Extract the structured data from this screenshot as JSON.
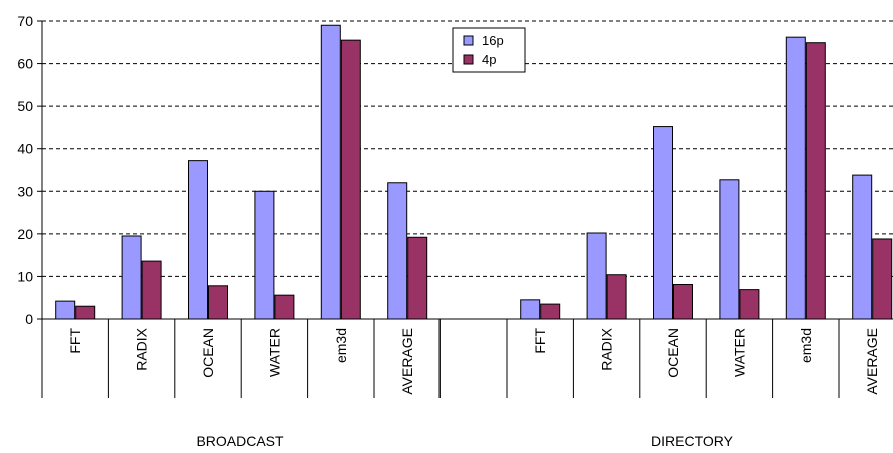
{
  "chart_data": {
    "type": "bar",
    "groups": [
      "BROADCAST",
      "DIRECTORY"
    ],
    "categories": [
      "FFT",
      "RADIX",
      "OCEAN",
      "WATER",
      "em3d",
      "AVERAGE"
    ],
    "series": [
      {
        "name": "16p",
        "color": "#9999ff",
        "values": [
          [
            4.2,
            19.5,
            37.2,
            30.0,
            69.0,
            32.0
          ],
          [
            4.5,
            20.2,
            45.2,
            32.7,
            66.2,
            33.8
          ]
        ]
      },
      {
        "name": "4p",
        "color": "#993366",
        "values": [
          [
            3.0,
            13.6,
            7.8,
            5.6,
            65.5,
            19.2
          ],
          [
            3.5,
            10.4,
            8.1,
            6.9,
            64.9,
            18.8
          ]
        ]
      }
    ],
    "ylim": [
      0,
      70
    ],
    "yticks": [
      0,
      10,
      20,
      30,
      40,
      50,
      60,
      70
    ],
    "grid": true,
    "legend": "top-center"
  }
}
